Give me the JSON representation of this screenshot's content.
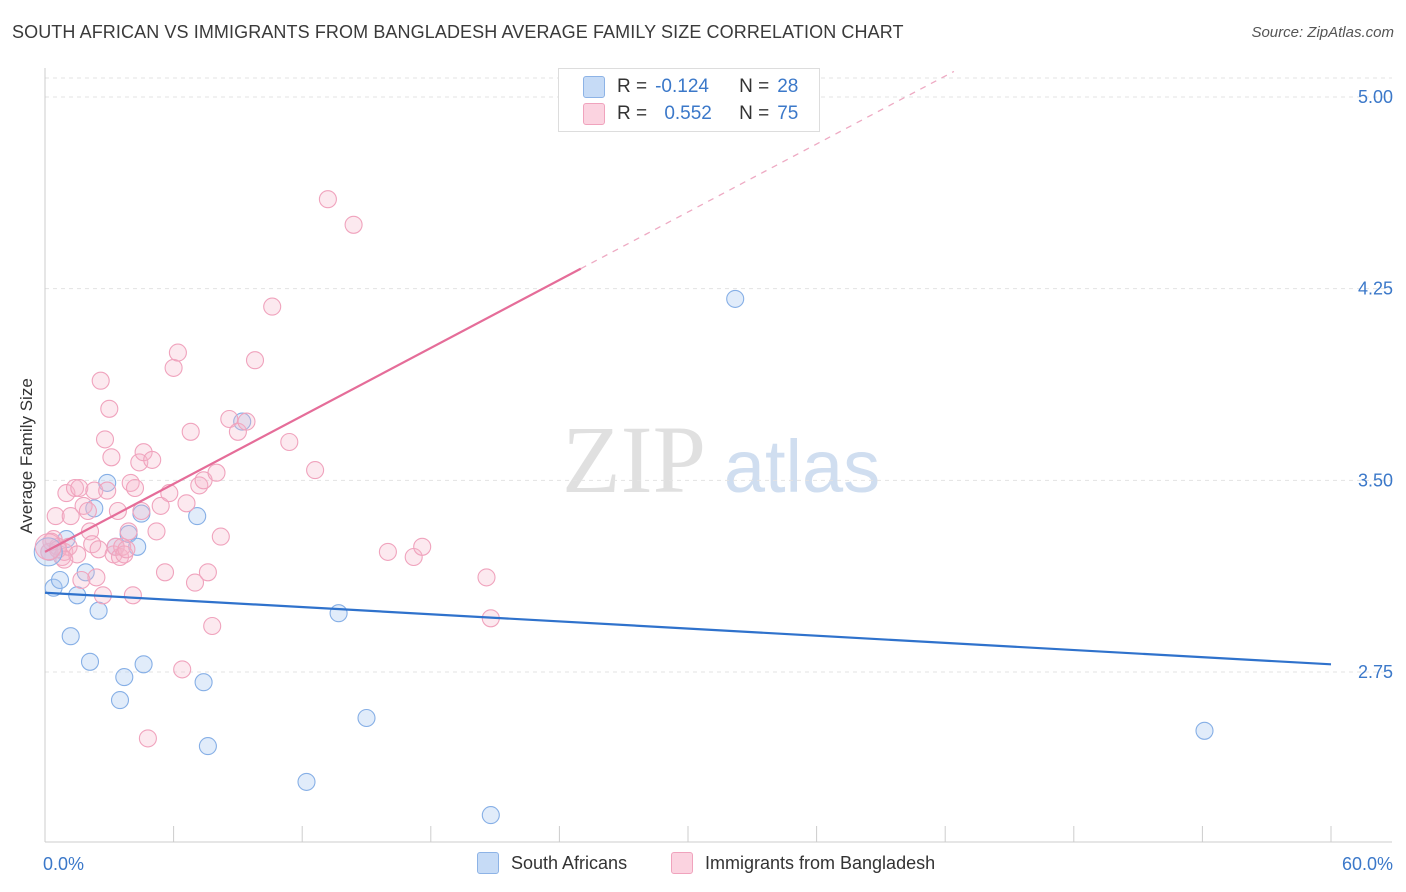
{
  "header": {
    "title": "SOUTH AFRICAN VS IMMIGRANTS FROM BANGLADESH AVERAGE FAMILY SIZE CORRELATION CHART",
    "source": "Source: ZipAtlas.com"
  },
  "watermark": {
    "zip": "ZIP",
    "atlas": "atlas"
  },
  "legend_top": {
    "rows": [
      {
        "r_label": "R =",
        "r_value": "-0.124",
        "n_label": "N =",
        "n_value": "28",
        "color": "#a9c8f0"
      },
      {
        "r_label": "R =",
        "r_value": "0.552",
        "n_label": "N =",
        "n_value": "75",
        "color": "#f6b6ca"
      }
    ]
  },
  "chart_data": {
    "type": "scatter",
    "title": "SOUTH AFRICAN VS IMMIGRANTS FROM BANGLADESH AVERAGE FAMILY SIZE CORRELATION CHART",
    "xlabel": "",
    "ylabel": "Average Family Size",
    "xlim": [
      0,
      60
    ],
    "ylim": [
      2.05,
      5.1
    ],
    "x_tick_labels": [
      "0.0%",
      "60.0%"
    ],
    "y_ticks": [
      2.75,
      3.5,
      4.25,
      5.0
    ],
    "y_tick_labels": [
      "2.75",
      "3.50",
      "4.25",
      "5.00"
    ],
    "grid": "horizontal dashed",
    "legend_position": "top-center and bottom",
    "series": [
      {
        "name": "South Africans",
        "color": "#7aa9e6",
        "line_color": "#2f72cc",
        "trend": {
          "x": [
            0,
            60
          ],
          "y": [
            3.06,
            2.78
          ]
        },
        "x": [
          0.4,
          0.7,
          1.0,
          1.2,
          1.5,
          1.9,
          2.1,
          2.3,
          2.5,
          2.9,
          3.3,
          3.5,
          3.7,
          3.9,
          4.3,
          4.5,
          4.6,
          7.1,
          7.4,
          7.6,
          9.2,
          12.2,
          13.7,
          15.0,
          20.8,
          32.2,
          54.1,
          0.2
        ],
        "y": [
          3.08,
          3.11,
          3.27,
          2.89,
          3.05,
          3.14,
          2.79,
          3.39,
          2.99,
          3.49,
          3.24,
          2.64,
          2.73,
          3.29,
          3.24,
          3.37,
          2.78,
          3.36,
          2.71,
          2.46,
          3.73,
          2.32,
          2.98,
          2.57,
          2.19,
          4.21,
          2.52,
          3.22
        ]
      },
      {
        "name": "Immigrants from Bangladesh",
        "color": "#f19ab7",
        "line_color": "#e56d99",
        "trend": {
          "x": [
            0,
            60
          ],
          "y": [
            3.22,
            5.88
          ]
        },
        "x": [
          0.2,
          0.4,
          0.5,
          0.6,
          0.8,
          0.9,
          1.0,
          1.1,
          1.2,
          1.4,
          1.5,
          1.6,
          1.7,
          1.8,
          2.0,
          2.1,
          2.2,
          2.3,
          2.4,
          2.5,
          2.6,
          2.7,
          2.8,
          2.9,
          3.0,
          3.1,
          3.2,
          3.3,
          3.4,
          3.5,
          3.6,
          3.7,
          3.8,
          3.9,
          4.0,
          4.1,
          4.2,
          4.4,
          4.5,
          4.6,
          4.8,
          5.0,
          5.2,
          5.4,
          5.6,
          5.8,
          6.0,
          6.2,
          6.4,
          6.6,
          6.8,
          7.0,
          7.2,
          7.4,
          7.6,
          7.8,
          8.0,
          8.2,
          8.6,
          9.0,
          9.4,
          9.8,
          10.6,
          11.4,
          12.6,
          13.2,
          14.4,
          16.0,
          17.2,
          17.6,
          20.6,
          20.8,
          0.3,
          0.6,
          0.9
        ],
        "y": [
          3.22,
          3.27,
          3.36,
          3.24,
          3.2,
          3.22,
          3.45,
          3.24,
          3.36,
          3.47,
          3.21,
          3.47,
          3.11,
          3.4,
          3.38,
          3.3,
          3.25,
          3.46,
          3.12,
          3.23,
          3.89,
          3.05,
          3.66,
          3.46,
          3.78,
          3.59,
          3.21,
          3.24,
          3.38,
          3.2,
          3.24,
          3.21,
          3.23,
          3.3,
          3.49,
          3.05,
          3.47,
          3.57,
          3.38,
          3.61,
          2.49,
          3.58,
          3.3,
          3.4,
          3.14,
          3.45,
          3.94,
          4.0,
          2.76,
          3.41,
          3.69,
          3.1,
          3.48,
          3.5,
          3.14,
          2.93,
          3.53,
          3.28,
          3.74,
          3.69,
          3.73,
          3.97,
          4.18,
          3.65,
          3.54,
          4.6,
          4.5,
          3.22,
          3.2,
          3.24,
          3.12,
          2.96,
          3.26,
          3.23,
          3.19
        ]
      }
    ]
  },
  "legend_bottom": {
    "items": [
      {
        "label": "South Africans",
        "color": "#a9c8f0"
      },
      {
        "label": "Immigrants from Bangladesh",
        "color": "#f6b6ca"
      }
    ]
  }
}
